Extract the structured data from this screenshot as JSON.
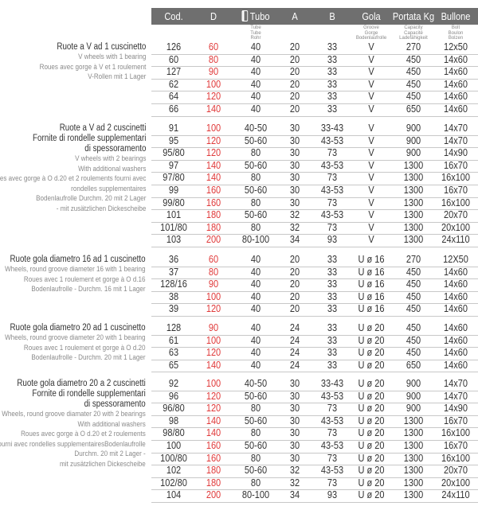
{
  "header": {
    "columns": [
      {
        "label": "Cod.",
        "sub": ""
      },
      {
        "label": "D",
        "sub": ""
      },
      {
        "label": "Tubo",
        "sub": "Tube\nTube\nRohr",
        "icon": "tube-icon"
      },
      {
        "label": "A",
        "sub": ""
      },
      {
        "label": "B",
        "sub": ""
      },
      {
        "label": "Gola",
        "sub": "Groove\nGorge\nBodenlaufrolle"
      },
      {
        "label": "Portata Kg",
        "sub": "Capacity\nCapacité\nLadefähigkeit"
      },
      {
        "label": "Bullone",
        "sub": "Bolt\nBoulon\nBolzen"
      }
    ]
  },
  "colors": {
    "header_bg": "#6f6f6f",
    "diameter": "#e03a3a"
  },
  "sections": [
    {
      "title": [
        "Ruote a V ad 1 cuscinetto"
      ],
      "subtitle": [
        "V wheels with 1 bearing",
        "Roues avec gorge à V et 1 roulement",
        "V-Rollen mit 1 Lager"
      ],
      "rows": [
        [
          "126",
          "60",
          "40",
          "20",
          "33",
          "V",
          "270",
          "12x50"
        ],
        [
          "60",
          "80",
          "40",
          "20",
          "33",
          "V",
          "450",
          "14x60"
        ],
        [
          "127",
          "90",
          "40",
          "20",
          "33",
          "V",
          "450",
          "14x60"
        ],
        [
          "62",
          "100",
          "40",
          "20",
          "33",
          "V",
          "450",
          "14x60"
        ],
        [
          "64",
          "120",
          "40",
          "20",
          "33",
          "V",
          "450",
          "14x60"
        ],
        [
          "66",
          "140",
          "40",
          "20",
          "33",
          "V",
          "650",
          "14x60"
        ]
      ]
    },
    {
      "title": [
        "Ruote a V ad 2 cuscinetti",
        "Fornite di rondelle supplementari",
        "di spessoramento"
      ],
      "subtitle": [
        "V wheels with 2 bearings",
        "With additional washers",
        "Roues avec gorge à O d.20 et 2 roulements fourni avec",
        "rondelles supplementaires",
        "Bodenlaufrolle Durchm. 20 mit 2 Lager",
        "- mit zusätzlichen Dickescheibe"
      ],
      "rows": [
        [
          "91",
          "100",
          "40-50",
          "30",
          "33-43",
          "V",
          "900",
          "14x70"
        ],
        [
          "95",
          "120",
          "50-60",
          "30",
          "43-53",
          "V",
          "900",
          "14x70"
        ],
        [
          "95/80",
          "120",
          "80",
          "30",
          "73",
          "V",
          "900",
          "14x90"
        ],
        [
          "97",
          "140",
          "50-60",
          "30",
          "43-53",
          "V",
          "1300",
          "16x70"
        ],
        [
          "97/80",
          "140",
          "80",
          "30",
          "73",
          "V",
          "1300",
          "16x100"
        ],
        [
          "99",
          "160",
          "50-60",
          "30",
          "43-53",
          "V",
          "1300",
          "16x70"
        ],
        [
          "99/80",
          "160",
          "80",
          "30",
          "73",
          "V",
          "1300",
          "16x100"
        ],
        [
          "101",
          "180",
          "50-60",
          "32",
          "43-53",
          "V",
          "1300",
          "20x70"
        ],
        [
          "101/80",
          "180",
          "80",
          "32",
          "73",
          "V",
          "1300",
          "20x100"
        ],
        [
          "103",
          "200",
          "80-100",
          "34",
          "93",
          "V",
          "1300",
          "24x110"
        ]
      ]
    },
    {
      "title": [
        "Ruote gola diametro 16 ad 1 cuscinetto"
      ],
      "subtitle": [
        "Wheels, round groove diameter 16 with 1 bearing",
        "Roues avec 1 roulement et gorge à O d.16",
        "Bodenlaufrolle - Durchm. 16 mit 1 Lager"
      ],
      "rows": [
        [
          "36",
          "60",
          "40",
          "20",
          "33",
          "U  ø 16",
          "270",
          "12X50"
        ],
        [
          "37",
          "80",
          "40",
          "20",
          "33",
          "U  ø 16",
          "450",
          "14x60"
        ],
        [
          "128/16",
          "90",
          "40",
          "20",
          "33",
          "U  ø 16",
          "450",
          "14x60"
        ],
        [
          "38",
          "100",
          "40",
          "20",
          "33",
          "U  ø 16",
          "450",
          "14x60"
        ],
        [
          "39",
          "120",
          "40",
          "20",
          "33",
          "U  ø 16",
          "450",
          "14x60"
        ]
      ]
    },
    {
      "title": [
        "Ruote gola diametro 20 ad 1 cuscinetto"
      ],
      "subtitle": [
        "Wheels, round groove diameter 20 with 1 bearing",
        "Roues avec 1 roulement et gorge à O d.20",
        "Bodenlaufrolle - Durchm. 20 mit 1 Lager"
      ],
      "rows": [
        [
          "128",
          "90",
          "40",
          "24",
          "33",
          "U  ø 20",
          "450",
          "14x60"
        ],
        [
          "61",
          "100",
          "40",
          "24",
          "33",
          "U  ø 20",
          "450",
          "14x60"
        ],
        [
          "63",
          "120",
          "40",
          "24",
          "33",
          "U  ø 20",
          "450",
          "14x60"
        ],
        [
          "65",
          "140",
          "40",
          "24",
          "33",
          "U  ø 20",
          "650",
          "14x60"
        ]
      ]
    },
    {
      "title": [
        "Ruote gola diametro 20 a 2 cuscinetti",
        "Fornite di rondelle supplementari",
        "di spessoramento"
      ],
      "subtitle": [
        "Wheels, round groove diamater 20 with 2 bearings",
        "With additional washers",
        "Roues avec gorge à O d.20 et 2 roulements",
        "fourni avec rondelles supplementairesBodenlaufrolle",
        "Durchm. 20 mit 2 Lager -",
        "mit zusätzlichen Dickescheibe"
      ],
      "rows": [
        [
          "92",
          "100",
          "40-50",
          "30",
          "33-43",
          "U  ø 20",
          "900",
          "14x70"
        ],
        [
          "96",
          "120",
          "50-60",
          "30",
          "43-53",
          "U  ø 20",
          "900",
          "14x70"
        ],
        [
          "96/80",
          "120",
          "80",
          "30",
          "73",
          "U  ø 20",
          "900",
          "14x90"
        ],
        [
          "98",
          "140",
          "50-60",
          "30",
          "43-53",
          "U  ø 20",
          "1300",
          "16x70"
        ],
        [
          "98/80",
          "140",
          "80",
          "30",
          "73",
          "U  ø 20",
          "1300",
          "16x100"
        ],
        [
          "100",
          "160",
          "50-60",
          "30",
          "43-53",
          "U  ø 20",
          "1300",
          "16x70"
        ],
        [
          "100/80",
          "160",
          "80",
          "30",
          "73",
          "U  ø 20",
          "1300",
          "16x100"
        ],
        [
          "102",
          "180",
          "50-60",
          "32",
          "43-53",
          "U  ø 20",
          "1300",
          "20x70"
        ],
        [
          "102/80",
          "180",
          "80",
          "32",
          "73",
          "U  ø 20",
          "1300",
          "20x100"
        ],
        [
          "104",
          "200",
          "80-100",
          "34",
          "93",
          "U  ø 20",
          "1300",
          "24x110"
        ]
      ]
    }
  ]
}
